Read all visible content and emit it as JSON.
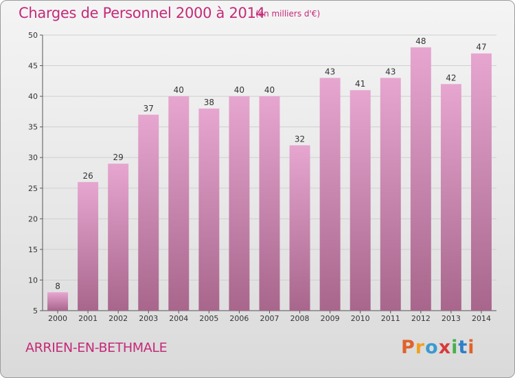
{
  "header": {
    "title": "Charges de Personnel 2000 à 2014",
    "subtitle": "(en milliers d'€)"
  },
  "footer": {
    "commune": "ARRIEN-EN-BETHMALE",
    "logo": "Proxiti"
  },
  "colors": {
    "title": "#c42a78",
    "bar_top": "#e6a6d0",
    "bar_bottom": "#a8668c",
    "logo_letters": [
      "#e0622a",
      "#f0a020",
      "#3a9ad0",
      "#d83a3a",
      "#48b04a",
      "#2f7fc8",
      "#e0622a"
    ]
  },
  "chart_data": {
    "type": "bar",
    "categories": [
      "2000",
      "2001",
      "2002",
      "2003",
      "2004",
      "2005",
      "2006",
      "2007",
      "2008",
      "2009",
      "2010",
      "2011",
      "2012",
      "2013",
      "2014"
    ],
    "values": [
      8,
      26,
      29,
      37,
      40,
      38,
      40,
      40,
      32,
      43,
      41,
      43,
      48,
      42,
      47
    ],
    "ylim": [
      5,
      50
    ],
    "yticks": [
      "5",
      "10",
      "15",
      "20",
      "25",
      "30",
      "35",
      "40",
      "45",
      "50"
    ],
    "grid": true,
    "legend": "none"
  }
}
